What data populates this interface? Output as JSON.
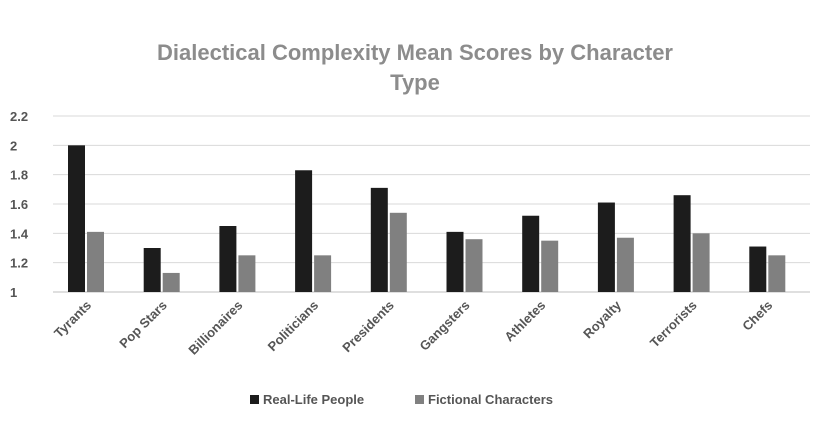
{
  "chart_data": {
    "type": "bar",
    "title_lines": [
      "Dialectical Complexity Mean Scores by Character",
      "Type"
    ],
    "categories": [
      "Tyrants",
      "Pop Stars",
      "Billionaires",
      "Politicians",
      "Presidents",
      "Gangsters",
      "Athletes",
      "Royalty",
      "Terrorists",
      "Chefs"
    ],
    "series": [
      {
        "name": "Real-Life People",
        "color": "#1c1c1c",
        "values": [
          2.0,
          1.3,
          1.45,
          1.83,
          1.71,
          1.41,
          1.52,
          1.61,
          1.66,
          1.31
        ]
      },
      {
        "name": "Fictional Characters",
        "color": "#808080",
        "values": [
          1.41,
          1.13,
          1.25,
          1.25,
          1.54,
          1.36,
          1.35,
          1.37,
          1.4,
          1.25
        ]
      }
    ],
    "xlabel": "",
    "ylabel": "",
    "ylim": [
      1,
      2.2
    ],
    "yticks": [
      "1",
      "1.2",
      "1.4",
      "1.6",
      "1.8",
      "2",
      "2.2"
    ],
    "grid": true,
    "legend_position": "bottom"
  }
}
